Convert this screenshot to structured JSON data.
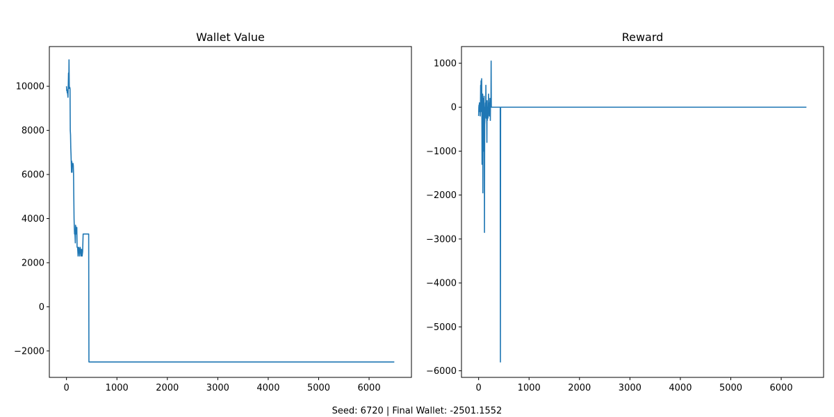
{
  "figure": {
    "footer": "Seed: 6720 | Final Wallet: -2501.1552"
  },
  "chart_data": [
    {
      "type": "line",
      "title": "Wallet Value",
      "xlabel": "",
      "ylabel": "",
      "xlim": [
        -340,
        6840
      ],
      "ylim": [
        -3200,
        11800
      ],
      "xticks": [
        0,
        1000,
        2000,
        3000,
        4000,
        5000,
        6000
      ],
      "yticks": [
        -2000,
        0,
        2000,
        4000,
        6000,
        8000,
        10000
      ],
      "xtick_labels": [
        "0",
        "1000",
        "2000",
        "3000",
        "4000",
        "5000",
        "6000"
      ],
      "ytick_labels": [
        "−2000",
        "0",
        "2000",
        "4000",
        "6000",
        "8000",
        "10000"
      ],
      "grid": false,
      "series": [
        {
          "color": "#1f77b4",
          "x": [
            0,
            5,
            10,
            15,
            20,
            25,
            30,
            35,
            40,
            45,
            50,
            55,
            60,
            65,
            70,
            75,
            80,
            85,
            90,
            95,
            100,
            105,
            110,
            115,
            120,
            125,
            130,
            135,
            140,
            145,
            150,
            155,
            160,
            165,
            170,
            175,
            180,
            185,
            190,
            195,
            200,
            205,
            210,
            220,
            230,
            240,
            250,
            260,
            270,
            280,
            290,
            300,
            310,
            320,
            330,
            340,
            350,
            360,
            380,
            400,
            420,
            440,
            445,
            6500
          ],
          "y": [
            10000,
            9800,
            9850,
            9700,
            9800,
            9600,
            9500,
            10000,
            10600,
            9900,
            11200,
            10000,
            9900,
            9950,
            9900,
            8000,
            7800,
            7200,
            6900,
            6500,
            6100,
            6600,
            6100,
            6500,
            6400,
            6500,
            6500,
            6400,
            6000,
            5000,
            4000,
            3600,
            3300,
            3400,
            3200,
            2900,
            3700,
            3500,
            3300,
            3600,
            3400,
            3600,
            2700,
            2700,
            2300,
            2700,
            2600,
            2300,
            2700,
            2600,
            2300,
            2600,
            2300,
            2500,
            3300,
            3300,
            3300,
            3300,
            3300,
            3300,
            3300,
            3300,
            -2500,
            -2500
          ]
        }
      ]
    },
    {
      "type": "line",
      "title": "Reward",
      "xlabel": "",
      "ylabel": "",
      "xlim": [
        -340,
        6840
      ],
      "ylim": [
        -6150,
        1380
      ],
      "xticks": [
        0,
        1000,
        2000,
        3000,
        4000,
        5000,
        6000
      ],
      "yticks": [
        -6000,
        -5000,
        -4000,
        -3000,
        -2000,
        -1000,
        0,
        1000
      ],
      "xtick_labels": [
        "0",
        "1000",
        "2000",
        "3000",
        "4000",
        "5000",
        "6000"
      ],
      "ytick_labels": [
        "−6000",
        "−5000",
        "−4000",
        "−3000",
        "−2000",
        "−1000",
        "0",
        "1000"
      ],
      "grid": false,
      "series": [
        {
          "color": "#1f77b4",
          "x": [
            0,
            4,
            8,
            12,
            16,
            20,
            24,
            28,
            32,
            36,
            40,
            44,
            48,
            52,
            56,
            60,
            64,
            68,
            72,
            76,
            80,
            84,
            88,
            92,
            96,
            100,
            104,
            108,
            112,
            116,
            120,
            124,
            128,
            132,
            136,
            140,
            144,
            148,
            152,
            156,
            160,
            164,
            168,
            172,
            176,
            180,
            184,
            188,
            192,
            196,
            200,
            204,
            208,
            212,
            216,
            220,
            224,
            228,
            232,
            236,
            240,
            244,
            248,
            252,
            256,
            260,
            264,
            268,
            272,
            276,
            280,
            284,
            288,
            292,
            296,
            300,
            304,
            308,
            312,
            316,
            320,
            324,
            328,
            332,
            336,
            340,
            344,
            348,
            352,
            356,
            360,
            364,
            368,
            372,
            376,
            380,
            384,
            388,
            392,
            396,
            400,
            404,
            408,
            412,
            416,
            420,
            424,
            428,
            432,
            436,
            440,
            444,
            6500
          ],
          "y": [
            -200,
            0,
            50,
            -100,
            100,
            -50,
            0,
            50,
            -200,
            0,
            500,
            -100,
            600,
            -50,
            400,
            650,
            0,
            -1300,
            -200,
            -1000,
            300,
            -1950,
            -500,
            200,
            -1000,
            0,
            -200,
            250,
            -150,
            -2850,
            -400,
            -300,
            0,
            -100,
            100,
            -200,
            500,
            -250,
            0,
            -100,
            -200,
            -800,
            150,
            -300,
            0,
            0,
            -250,
            -200,
            0,
            300,
            -100,
            100,
            0,
            -200,
            100,
            0,
            200,
            100,
            -300,
            150,
            0,
            0,
            1050,
            0,
            0,
            0,
            0,
            0,
            0,
            0,
            0,
            0,
            0,
            0,
            0,
            0,
            0,
            0,
            0,
            0,
            0,
            0,
            0,
            0,
            0,
            0,
            0,
            0,
            0,
            0,
            0,
            0,
            0,
            0,
            0,
            0,
            0,
            0,
            0,
            0,
            0,
            0,
            0,
            0,
            0,
            0,
            0,
            0,
            -5800,
            0,
            0,
            0,
            0
          ]
        }
      ]
    }
  ]
}
